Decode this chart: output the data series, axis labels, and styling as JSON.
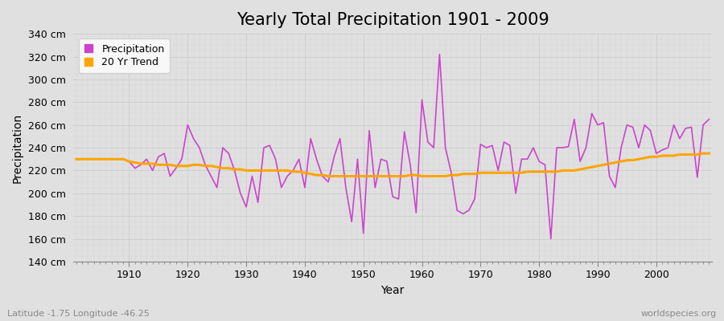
{
  "title": "Yearly Total Precipitation 1901 - 2009",
  "xlabel": "Year",
  "ylabel": "Precipitation",
  "footnote_left": "Latitude -1.75 Longitude -46.25",
  "footnote_right": "worldspecies.org",
  "years": [
    1901,
    1902,
    1903,
    1904,
    1905,
    1906,
    1907,
    1908,
    1909,
    1910,
    1911,
    1912,
    1913,
    1914,
    1915,
    1916,
    1917,
    1918,
    1919,
    1920,
    1921,
    1922,
    1923,
    1924,
    1925,
    1926,
    1927,
    1928,
    1929,
    1930,
    1931,
    1932,
    1933,
    1934,
    1935,
    1936,
    1937,
    1938,
    1939,
    1940,
    1941,
    1942,
    1943,
    1944,
    1945,
    1946,
    1947,
    1948,
    1949,
    1950,
    1951,
    1952,
    1953,
    1954,
    1955,
    1956,
    1957,
    1958,
    1959,
    1960,
    1961,
    1962,
    1963,
    1964,
    1965,
    1966,
    1967,
    1968,
    1969,
    1970,
    1971,
    1972,
    1973,
    1974,
    1975,
    1976,
    1977,
    1978,
    1979,
    1980,
    1981,
    1982,
    1983,
    1984,
    1985,
    1986,
    1987,
    1988,
    1989,
    1990,
    1991,
    1992,
    1993,
    1994,
    1995,
    1996,
    1997,
    1998,
    1999,
    2000,
    2001,
    2002,
    2003,
    2004,
    2005,
    2006,
    2007,
    2008,
    2009
  ],
  "precip": [
    230,
    230,
    230,
    230,
    230,
    230,
    230,
    230,
    230,
    228,
    222,
    225,
    230,
    220,
    232,
    235,
    215,
    222,
    230,
    260,
    248,
    240,
    225,
    215,
    205,
    240,
    235,
    220,
    200,
    188,
    215,
    192,
    240,
    242,
    230,
    205,
    215,
    220,
    230,
    205,
    248,
    230,
    215,
    210,
    232,
    248,
    205,
    175,
    230,
    165,
    255,
    205,
    230,
    228,
    197,
    195,
    254,
    225,
    183,
    282,
    245,
    240,
    322,
    240,
    218,
    185,
    182,
    185,
    195,
    243,
    240,
    242,
    220,
    245,
    242,
    200,
    230,
    230,
    240,
    228,
    225,
    160,
    240,
    240,
    241,
    265,
    228,
    240,
    270,
    260,
    262,
    215,
    205,
    240,
    260,
    258,
    240,
    260,
    255,
    235,
    238,
    240,
    260,
    248,
    257,
    258,
    214,
    260,
    265
  ],
  "trend": [
    230,
    230,
    230,
    230,
    230,
    230,
    230,
    230,
    230,
    228,
    227,
    226,
    226,
    226,
    225,
    225,
    225,
    224,
    224,
    224,
    225,
    225,
    224,
    224,
    223,
    222,
    222,
    221,
    221,
    220,
    220,
    220,
    220,
    220,
    220,
    220,
    220,
    219,
    219,
    218,
    217,
    216,
    216,
    215,
    215,
    215,
    215,
    215,
    215,
    215,
    215,
    215,
    215,
    215,
    215,
    215,
    215,
    216,
    216,
    215,
    215,
    215,
    215,
    215,
    216,
    216,
    217,
    217,
    217,
    218,
    218,
    218,
    218,
    218,
    218,
    218,
    218,
    219,
    219,
    219,
    219,
    219,
    219,
    220,
    220,
    220,
    221,
    222,
    223,
    224,
    225,
    226,
    227,
    228,
    229,
    229,
    230,
    231,
    232,
    232,
    233,
    233,
    233,
    234,
    234,
    234,
    234,
    235,
    235
  ],
  "ylim": [
    140,
    340
  ],
  "yticks": [
    140,
    160,
    180,
    200,
    220,
    240,
    260,
    280,
    300,
    320,
    340
  ],
  "ytick_labels": [
    "140 cm",
    "160 cm",
    "180 cm",
    "200 cm",
    "220 cm",
    "240 cm",
    "260 cm",
    "280 cm",
    "300 cm",
    "320 cm",
    "340 cm"
  ],
  "precip_color": "#CC44CC",
  "trend_color": "#FFA500",
  "bg_color": "#E0E0E0",
  "plot_bg_color": "#E0E0E0",
  "grid_color": "#CCCCCC",
  "title_fontsize": 15,
  "axis_label_fontsize": 10,
  "tick_fontsize": 9,
  "legend_labels": [
    "Precipitation",
    "20 Yr Trend"
  ]
}
